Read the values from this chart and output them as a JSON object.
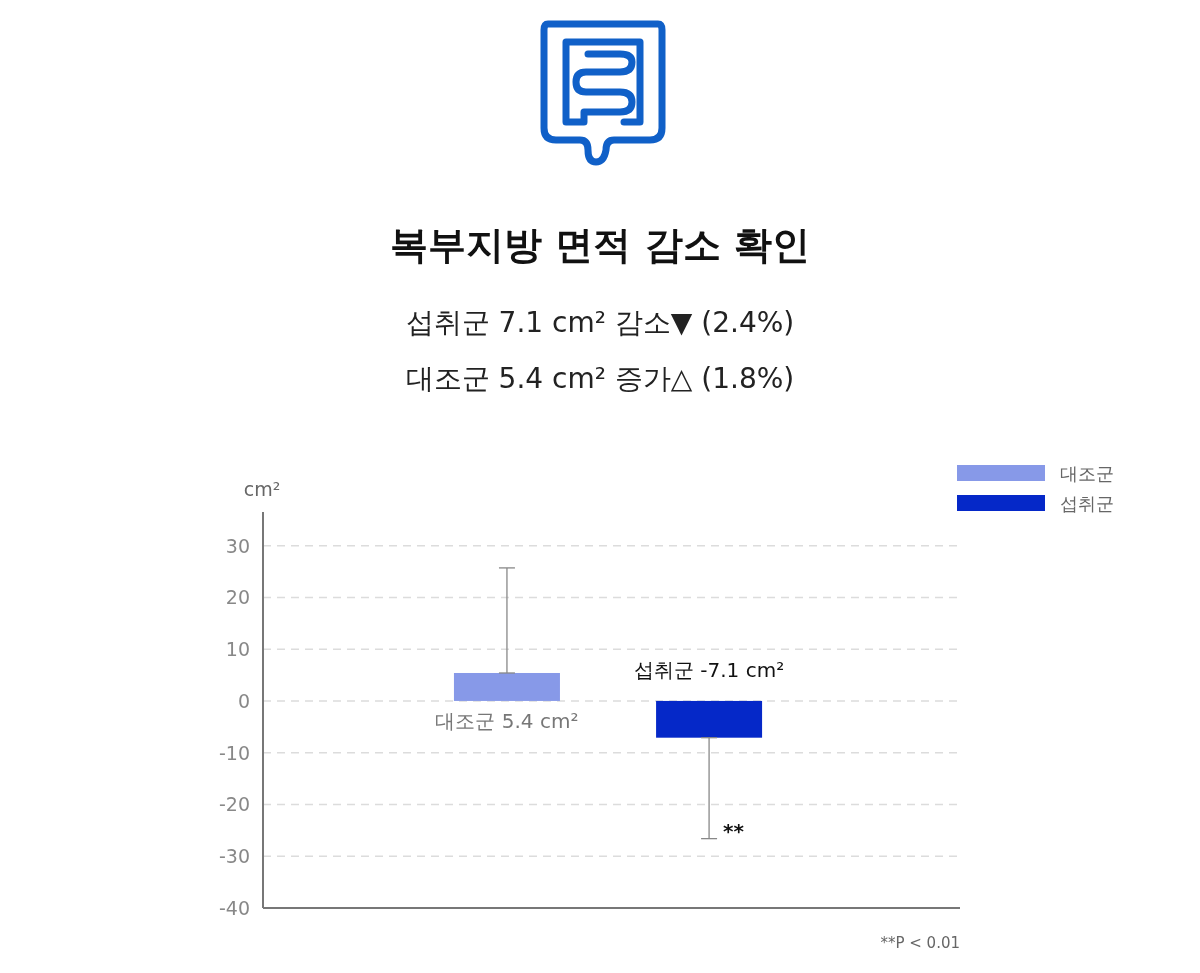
{
  "chart_data": {
    "type": "bar",
    "title": "복부지방 면적 감소 확인",
    "subtitle": "섭취군 7.1 cm² 감소▼ (2.4%)\n대조군 5.4 cm² 증가△ (1.8%)",
    "ylabel": "cm²",
    "categories": [
      null,
      null
    ],
    "series": [
      {
        "name": "대조군",
        "color": "#8799e8",
        "values": [
          5.4,
          null
        ],
        "errors": [
          [
            5.4,
            25.7
          ],
          null
        ],
        "value_labels": [
          "대조군 5.4 cm²",
          null
        ]
      },
      {
        "name": "섭취군",
        "color": "#0528c8",
        "values": [
          null,
          -7.1
        ],
        "errors": [
          null,
          [
            -26.6,
            -7.1
          ]
        ],
        "value_labels": [
          null,
          "섭취군 -7.1 cm²"
        ]
      }
    ],
    "ylim": [
      -40,
      36.5
    ],
    "yticks": [
      -40,
      -30,
      -20,
      -10,
      0,
      10,
      20,
      30
    ],
    "grid": "y",
    "line_style": "dashed",
    "legend": "top right",
    "annotations": [
      "**",
      "**P < 0.01"
    ]
  }
}
